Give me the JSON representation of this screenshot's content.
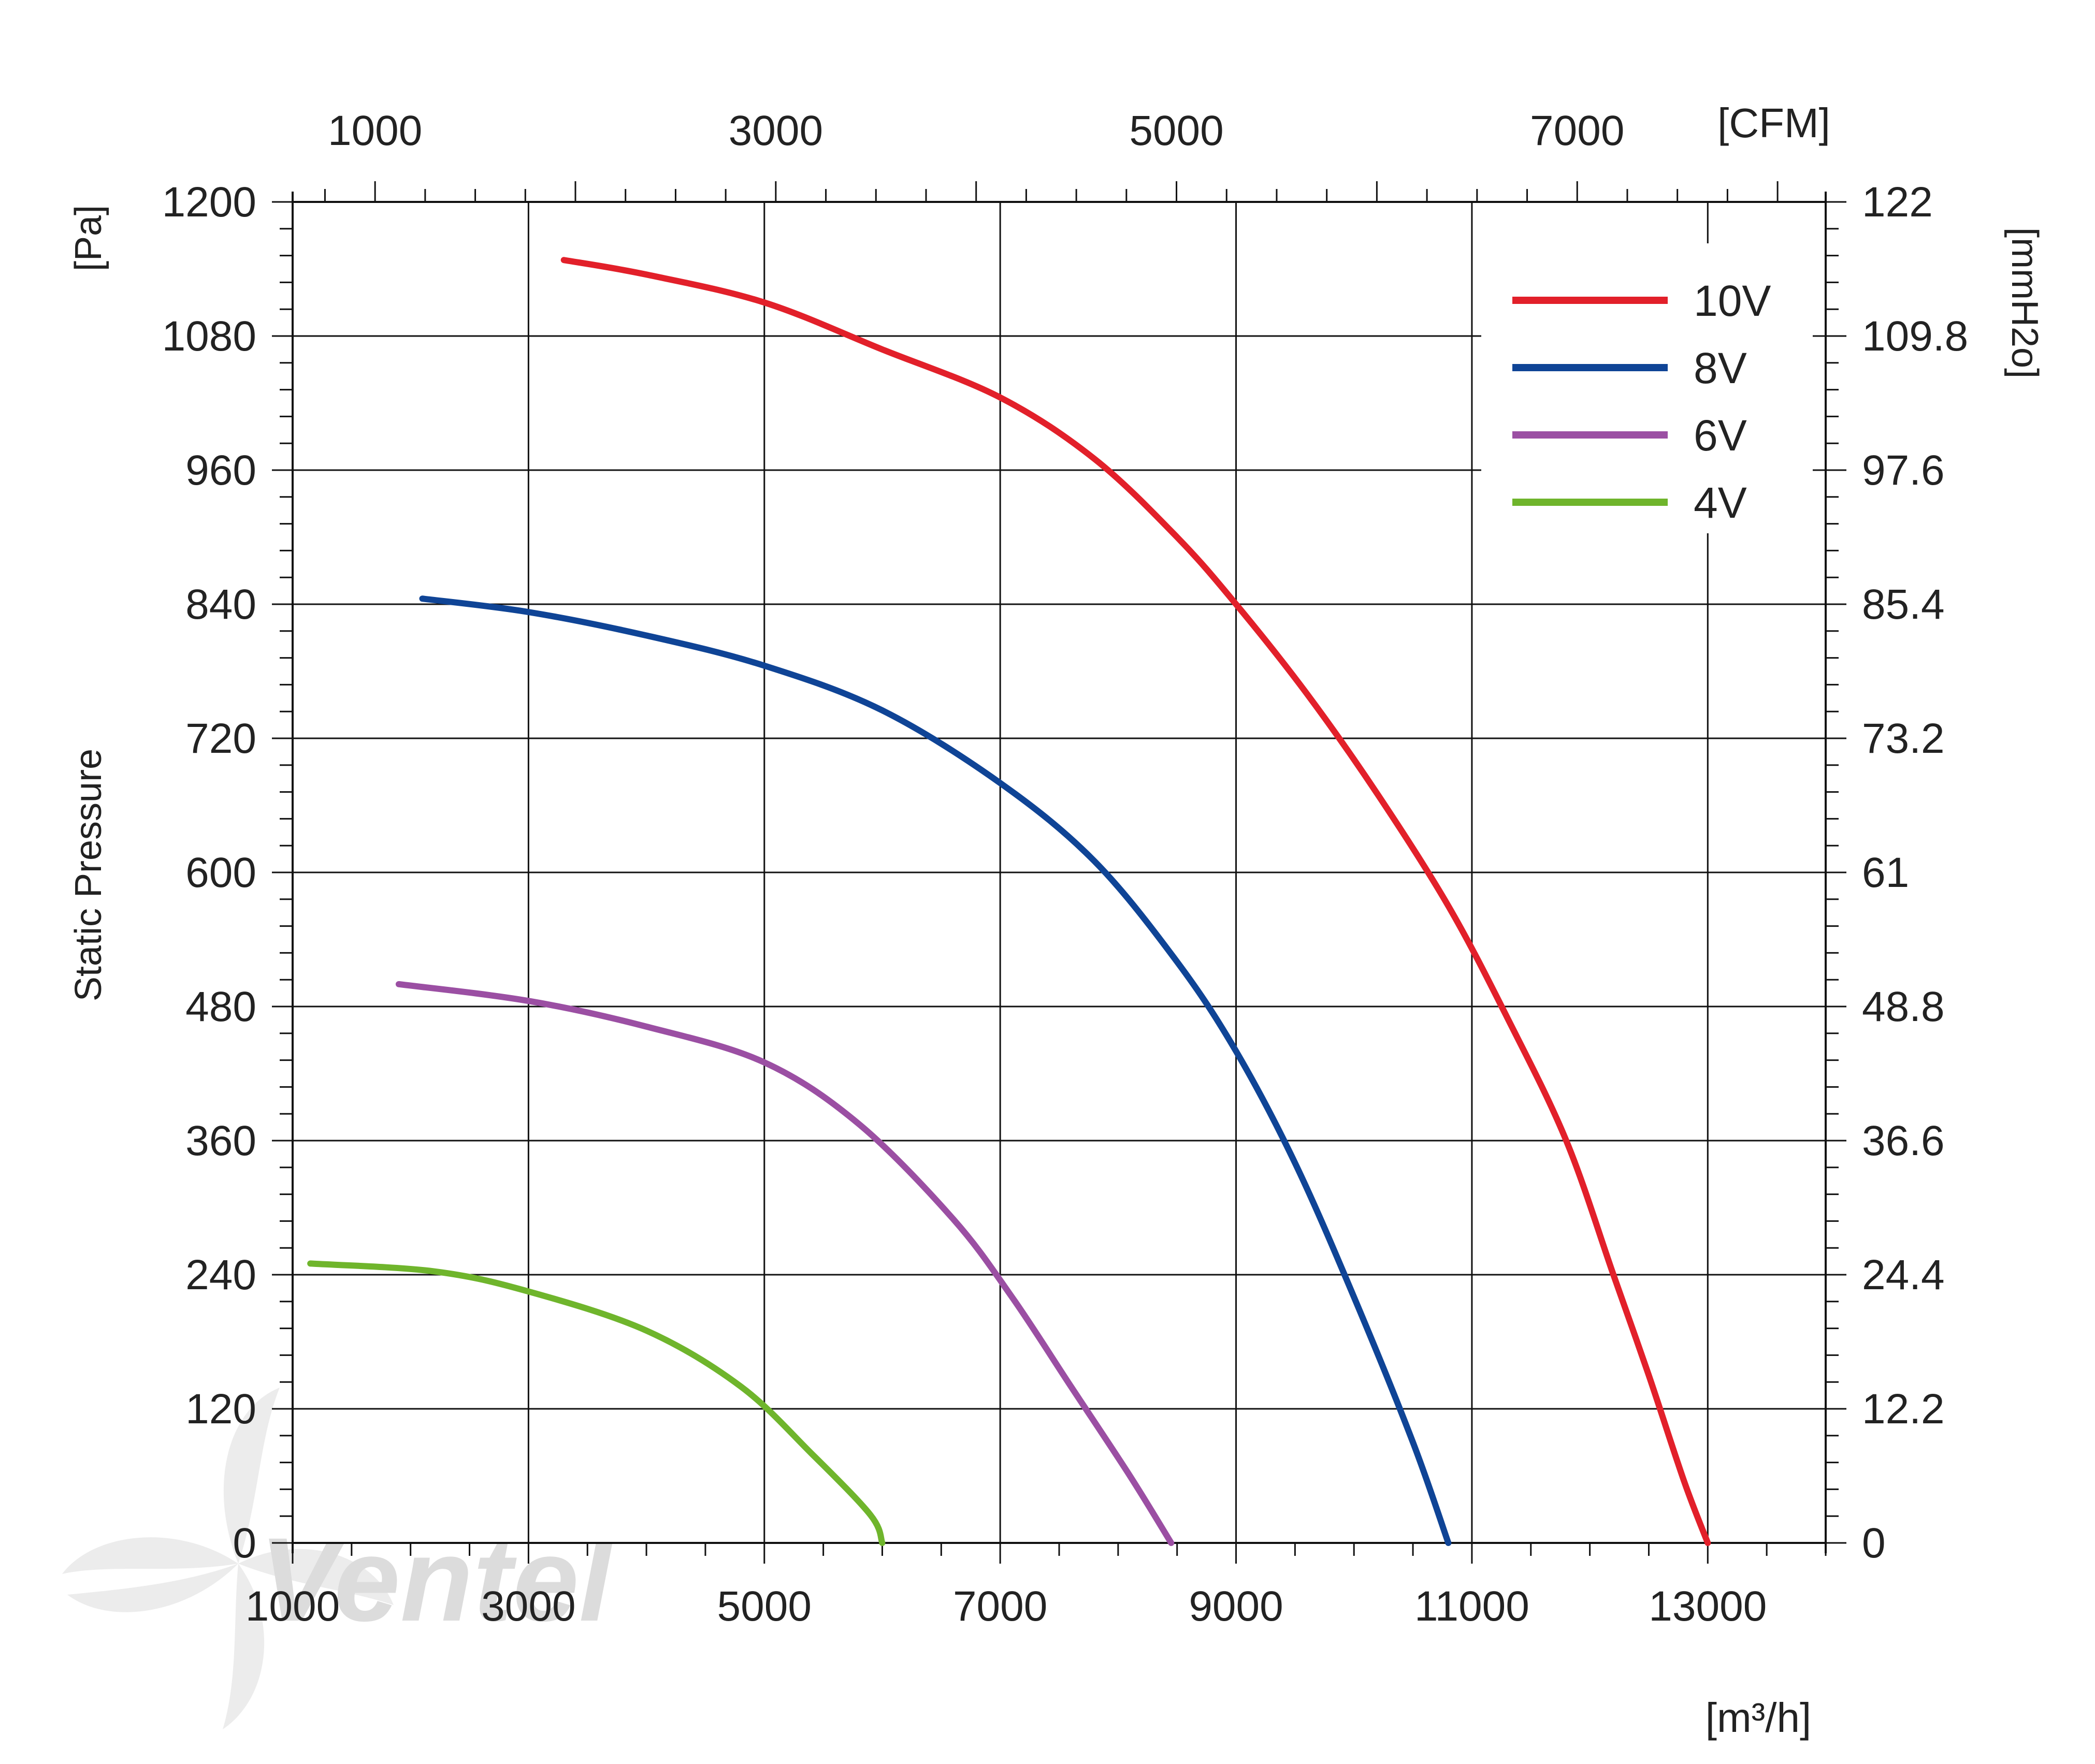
{
  "chart_data": {
    "type": "line",
    "title": "",
    "ylabel": "Static Pressure",
    "y_unit_left": "[Pa]",
    "y_unit_right": "[mmH2o]",
    "x_unit_bottom": "[m³/h]",
    "x_unit_top": "[CFM]",
    "xlim": [
      1000,
      14000
    ],
    "ylim": [
      0,
      1200
    ],
    "x_ticks_bottom": [
      1000,
      3000,
      5000,
      7000,
      9000,
      11000,
      13000
    ],
    "x_tick_labels_bottom": [
      "1000",
      "3000",
      "5000",
      "7000",
      "9000",
      "11000",
      "13000"
    ],
    "x_ticks_top_cfm": [
      1000,
      3000,
      5000,
      7000
    ],
    "x_tick_labels_top": [
      "1000",
      "3000",
      "5000",
      "7000"
    ],
    "y_ticks_left": [
      0,
      120,
      240,
      360,
      480,
      600,
      720,
      840,
      960,
      1080,
      1200
    ],
    "y_tick_labels_left": [
      "0",
      "120",
      "240",
      "360",
      "480",
      "600",
      "720",
      "840",
      "960",
      "1080",
      "1200"
    ],
    "y_tick_labels_right": [
      "0",
      "12.2",
      "24.4",
      "36.6",
      "48.8",
      "61",
      "73.2",
      "85.4",
      "97.6",
      "109.8",
      "122"
    ],
    "grid": true,
    "legend_position": "top-right",
    "series": [
      {
        "name": "10V",
        "color": "#e2202a",
        "points": [
          [
            3300,
            1148
          ],
          [
            4000,
            1135
          ],
          [
            5000,
            1110
          ],
          [
            6000,
            1068
          ],
          [
            7000,
            1025
          ],
          [
            7800,
            970
          ],
          [
            8500,
            900
          ],
          [
            9000,
            840
          ],
          [
            9600,
            760
          ],
          [
            10200,
            670
          ],
          [
            10800,
            570
          ],
          [
            11300,
            470
          ],
          [
            11800,
            360
          ],
          [
            12200,
            240
          ],
          [
            12500,
            150
          ],
          [
            12800,
            55
          ],
          [
            13000,
            0
          ]
        ]
      },
      {
        "name": "8V",
        "color": "#0f4496",
        "points": [
          [
            2100,
            845
          ],
          [
            3000,
            833
          ],
          [
            4000,
            812
          ],
          [
            5000,
            785
          ],
          [
            6000,
            745
          ],
          [
            7000,
            680
          ],
          [
            7800,
            610
          ],
          [
            8500,
            520
          ],
          [
            9000,
            440
          ],
          [
            9500,
            340
          ],
          [
            10000,
            220
          ],
          [
            10500,
            90
          ],
          [
            10800,
            0
          ]
        ]
      },
      {
        "name": "6V",
        "color": "#9b4fa3",
        "points": [
          [
            1900,
            500
          ],
          [
            3000,
            485
          ],
          [
            4000,
            462
          ],
          [
            5000,
            430
          ],
          [
            5800,
            375
          ],
          [
            6600,
            290
          ],
          [
            7100,
            220
          ],
          [
            7600,
            140
          ],
          [
            8100,
            60
          ],
          [
            8450,
            0
          ]
        ]
      },
      {
        "name": "4V",
        "color": "#6fb52c",
        "points": [
          [
            1150,
            250
          ],
          [
            2200,
            243
          ],
          [
            3000,
            225
          ],
          [
            4000,
            190
          ],
          [
            4800,
            140
          ],
          [
            5400,
            80
          ],
          [
            5900,
            25
          ],
          [
            6000,
            0
          ]
        ]
      }
    ]
  },
  "watermark_text": "Ventel"
}
